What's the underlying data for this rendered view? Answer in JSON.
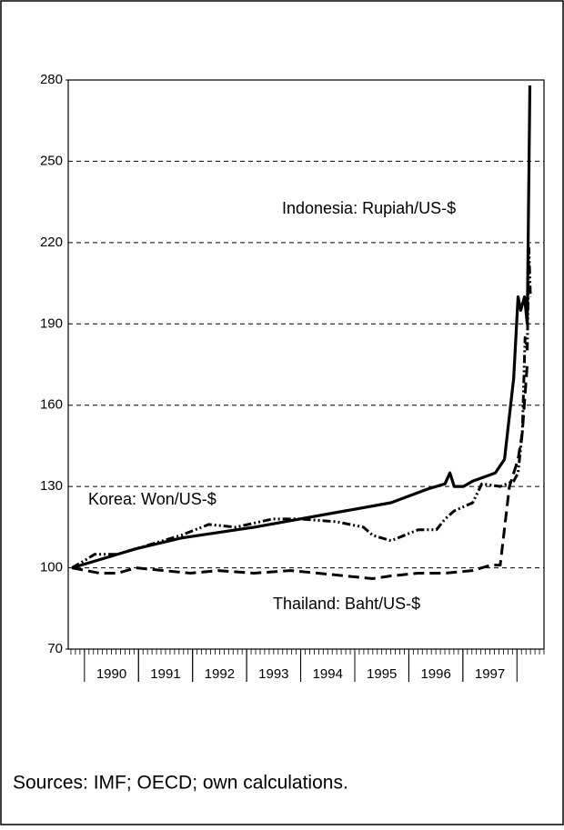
{
  "chart_data": {
    "type": "line",
    "ylim": [
      70,
      280
    ],
    "yticks": [
      70,
      100,
      130,
      160,
      190,
      220,
      250,
      280
    ],
    "xlim": [
      1989.7,
      1998.5
    ],
    "xticks": [
      {
        "value": 1990.5,
        "label": "1990"
      },
      {
        "value": 1991.5,
        "label": "1991"
      },
      {
        "value": 1992.5,
        "label": "1992"
      },
      {
        "value": 1993.5,
        "label": "1993"
      },
      {
        "value": 1994.5,
        "label": "1994"
      },
      {
        "value": 1995.5,
        "label": "1995"
      },
      {
        "value": 1996.5,
        "label": "1996"
      },
      {
        "value": 1997.5,
        "label": "1997"
      }
    ],
    "grid": true,
    "series": [
      {
        "name": "Indonesia: Rupiah/US-$",
        "color": "#000000",
        "style": "solid",
        "x": [
          1989.77,
          1990.28,
          1990.95,
          1991.79,
          1992.47,
          1993.14,
          1993.98,
          1994.82,
          1995.67,
          1996.34,
          1996.67,
          1996.76,
          1996.84,
          1997.01,
          1997.18,
          1997.6,
          1997.77,
          1997.94,
          1998.02,
          1998.07,
          1998.14,
          1998.19,
          1998.24
        ],
        "values": [
          100,
          103,
          107,
          111,
          113,
          115,
          118,
          121,
          124,
          129,
          131,
          135,
          130,
          130,
          132,
          135,
          140,
          170,
          200,
          195,
          200,
          190,
          278
        ]
      },
      {
        "name": "Korea: Won/US-$",
        "color": "#000000",
        "style": "dash-dot-dot",
        "x": [
          1989.77,
          1990.03,
          1990.19,
          1990.61,
          1991.12,
          1991.79,
          1992.3,
          1992.8,
          1993.48,
          1993.98,
          1994.66,
          1995.16,
          1995.33,
          1995.67,
          1995.92,
          1996.17,
          1996.51,
          1996.67,
          1996.84,
          1997.18,
          1997.35,
          1997.69,
          1997.94,
          1998.02,
          1998.1,
          1998.15,
          1998.19,
          1998.22,
          1998.25
        ],
        "values": [
          100,
          103,
          105,
          105,
          108,
          112,
          116,
          115,
          118,
          118,
          117,
          115,
          112,
          110,
          112,
          114,
          114,
          118,
          121,
          124,
          131,
          130,
          132,
          135,
          150,
          185,
          180,
          218,
          200
        ]
      },
      {
        "name": "Thailand: Baht/US-$",
        "color": "#000000",
        "style": "dashed",
        "x": [
          1989.77,
          1990.28,
          1990.61,
          1990.95,
          1991.46,
          1991.96,
          1992.47,
          1993.14,
          1993.81,
          1994.32,
          1994.82,
          1995.33,
          1995.67,
          1996.17,
          1996.67,
          1997.18,
          1997.52,
          1997.69,
          1997.86,
          1998.02,
          1998.1,
          1998.19
        ],
        "values": [
          100,
          98,
          98,
          100,
          99,
          98,
          99,
          98,
          99,
          98,
          97,
          96,
          97,
          98,
          98,
          99,
          101,
          101,
          130,
          140,
          150,
          175
        ]
      }
    ],
    "source": "Sources: IMF; OECD; own calculations."
  }
}
